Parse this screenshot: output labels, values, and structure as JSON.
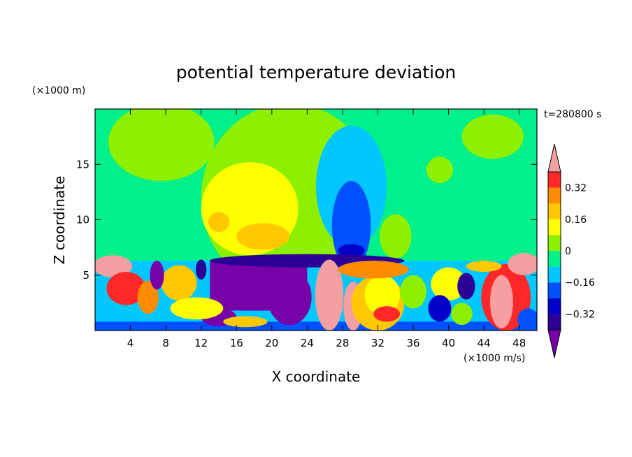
{
  "chart_data": {
    "type": "heatmap",
    "title": "potential temperature deviation",
    "xlabel": "X coordinate",
    "ylabel": "Z coordinate",
    "x_unit": "(×1000 m/s)",
    "y_unit": "(×1000 m)",
    "time_label": "t=280800 s",
    "xlim": [
      0,
      50
    ],
    "ylim": [
      0,
      20
    ],
    "x_ticks": [
      4,
      8,
      12,
      16,
      20,
      24,
      28,
      32,
      36,
      40,
      44,
      48
    ],
    "y_ticks": [
      5,
      10,
      15
    ],
    "colorbar": {
      "levels": [
        -0.48,
        -0.4,
        -0.32,
        -0.24,
        -0.16,
        -0.08,
        0,
        0.08,
        0.16,
        0.24,
        0.32,
        0.4
      ],
      "colors": [
        "#7700a8",
        "#2a0096",
        "#0000c8",
        "#0050ff",
        "#00c8ff",
        "#00f08c",
        "#8cf000",
        "#ffff00",
        "#ffc800",
        "#ff8c00",
        "#ff2828",
        "#f5a0a0"
      ],
      "labels": [
        {
          "value": -0.32,
          "text": "−0.32"
        },
        {
          "value": -0.16,
          "text": "−0.16"
        },
        {
          "value": 0,
          "text": "0"
        },
        {
          "value": 0.16,
          "text": "0.16"
        },
        {
          "value": 0.32,
          "text": "0.32"
        }
      ],
      "extend": "both"
    },
    "background_value": -0.04,
    "regions": [
      {
        "kind": "ellipse",
        "cx": 7.5,
        "cy": 17,
        "rx": 6,
        "ry": 3.5,
        "v": 0.04
      },
      {
        "kind": "ellipse",
        "cx": 22,
        "cy": 12,
        "rx": 10,
        "ry": 8.5,
        "v": 0.04
      },
      {
        "kind": "ellipse",
        "cx": 45,
        "cy": 17.5,
        "rx": 3.5,
        "ry": 2,
        "v": 0.04
      },
      {
        "kind": "ellipse",
        "cx": 39,
        "cy": 14.5,
        "rx": 1.5,
        "ry": 1.2,
        "v": 0.04
      },
      {
        "kind": "ellipse",
        "cx": 34,
        "cy": 8.5,
        "rx": 1.8,
        "ry": 2,
        "v": 0.04
      },
      {
        "kind": "ellipse",
        "cx": 17.5,
        "cy": 11,
        "rx": 5.5,
        "ry": 4.2,
        "v": 0.12
      },
      {
        "kind": "ellipse",
        "cx": 19,
        "cy": 8.5,
        "rx": 3,
        "ry": 1.2,
        "v": 0.2
      },
      {
        "kind": "ellipse",
        "cx": 14,
        "cy": 9.8,
        "rx": 1.2,
        "ry": 0.9,
        "v": 0.2
      },
      {
        "kind": "ellipse",
        "cx": 29,
        "cy": 13,
        "rx": 4,
        "ry": 5.5,
        "v": -0.12
      },
      {
        "kind": "ellipse",
        "cx": 29,
        "cy": 9.5,
        "rx": 2.2,
        "ry": 4,
        "v": -0.2
      },
      {
        "kind": "ellipse",
        "cx": 29,
        "cy": 7.2,
        "rx": 1.5,
        "ry": 0.6,
        "v": -0.28
      },
      {
        "kind": "rect",
        "x0": 0,
        "x1": 50,
        "y0": 0,
        "y1": 6.3,
        "v": -0.12
      },
      {
        "kind": "rect",
        "x0": 0,
        "x1": 50,
        "y0": 0,
        "y1": 0.8,
        "v": -0.2
      },
      {
        "kind": "rect",
        "x0": 13,
        "x1": 24,
        "y0": 1.8,
        "y1": 6.3,
        "v": -0.44
      },
      {
        "kind": "ellipse",
        "cx": 24,
        "cy": 6.3,
        "rx": 11,
        "ry": 0.6,
        "v": -0.36
      },
      {
        "kind": "ellipse",
        "cx": 22,
        "cy": 3,
        "rx": 2.5,
        "ry": 2.5,
        "v": -0.44
      },
      {
        "kind": "ellipse",
        "cx": 14,
        "cy": 1.2,
        "rx": 2,
        "ry": 0.8,
        "v": -0.44
      },
      {
        "kind": "ellipse",
        "cx": 2,
        "cy": 5.8,
        "rx": 2.2,
        "ry": 1,
        "v": 0.44
      },
      {
        "kind": "ellipse",
        "cx": 3.5,
        "cy": 3.8,
        "rx": 2.2,
        "ry": 1.5,
        "v": 0.36
      },
      {
        "kind": "ellipse",
        "cx": 6,
        "cy": 3,
        "rx": 1.2,
        "ry": 1.5,
        "v": 0.28
      },
      {
        "kind": "ellipse",
        "cx": 9.5,
        "cy": 4.3,
        "rx": 2,
        "ry": 1.6,
        "v": 0.2
      },
      {
        "kind": "ellipse",
        "cx": 11.5,
        "cy": 2,
        "rx": 3,
        "ry": 1,
        "v": 0.12
      },
      {
        "kind": "ellipse",
        "cx": 17,
        "cy": 0.8,
        "rx": 2.5,
        "ry": 0.5,
        "v": 0.2
      },
      {
        "kind": "ellipse",
        "cx": 7,
        "cy": 5,
        "rx": 0.8,
        "ry": 1.3,
        "v": -0.44
      },
      {
        "kind": "ellipse",
        "cx": 12,
        "cy": 5.5,
        "rx": 0.6,
        "ry": 0.9,
        "v": -0.36
      },
      {
        "kind": "ellipse",
        "cx": 26.5,
        "cy": 3.2,
        "rx": 1.6,
        "ry": 3.2,
        "v": 0.44
      },
      {
        "kind": "ellipse",
        "cx": 29.2,
        "cy": 2.2,
        "rx": 1.1,
        "ry": 2.2,
        "v": 0.44
      },
      {
        "kind": "ellipse",
        "cx": 32,
        "cy": 2.5,
        "rx": 3,
        "ry": 2.5,
        "v": 0.2
      },
      {
        "kind": "ellipse",
        "cx": 32.5,
        "cy": 3.2,
        "rx": 2,
        "ry": 1.8,
        "v": 0.12
      },
      {
        "kind": "ellipse",
        "cx": 31.5,
        "cy": 5.5,
        "rx": 4,
        "ry": 0.8,
        "v": 0.28
      },
      {
        "kind": "ellipse",
        "cx": 33,
        "cy": 1.5,
        "rx": 1.5,
        "ry": 0.7,
        "v": 0.36
      },
      {
        "kind": "ellipse",
        "cx": 36,
        "cy": 3.5,
        "rx": 1.5,
        "ry": 1.5,
        "v": 0.04
      },
      {
        "kind": "ellipse",
        "cx": 40,
        "cy": 4.2,
        "rx": 2,
        "ry": 1.5,
        "v": 0.12
      },
      {
        "kind": "ellipse",
        "cx": 39,
        "cy": 2,
        "rx": 1.3,
        "ry": 1.2,
        "v": -0.28
      },
      {
        "kind": "ellipse",
        "cx": 42,
        "cy": 4,
        "rx": 1,
        "ry": 1.2,
        "v": -0.36
      },
      {
        "kind": "ellipse",
        "cx": 41.5,
        "cy": 1.5,
        "rx": 1.2,
        "ry": 1,
        "v": 0.04
      },
      {
        "kind": "ellipse",
        "cx": 46.5,
        "cy": 3,
        "rx": 2.8,
        "ry": 3,
        "v": 0.36
      },
      {
        "kind": "ellipse",
        "cx": 46,
        "cy": 2.6,
        "rx": 1.3,
        "ry": 2.4,
        "v": 0.44
      },
      {
        "kind": "ellipse",
        "cx": 48.5,
        "cy": 6,
        "rx": 1.8,
        "ry": 1,
        "v": 0.44
      },
      {
        "kind": "ellipse",
        "cx": 44,
        "cy": 5.8,
        "rx": 2,
        "ry": 0.5,
        "v": 0.2
      },
      {
        "kind": "ellipse",
        "cx": 49,
        "cy": 1,
        "rx": 1.2,
        "ry": 1,
        "v": -0.2
      }
    ]
  }
}
